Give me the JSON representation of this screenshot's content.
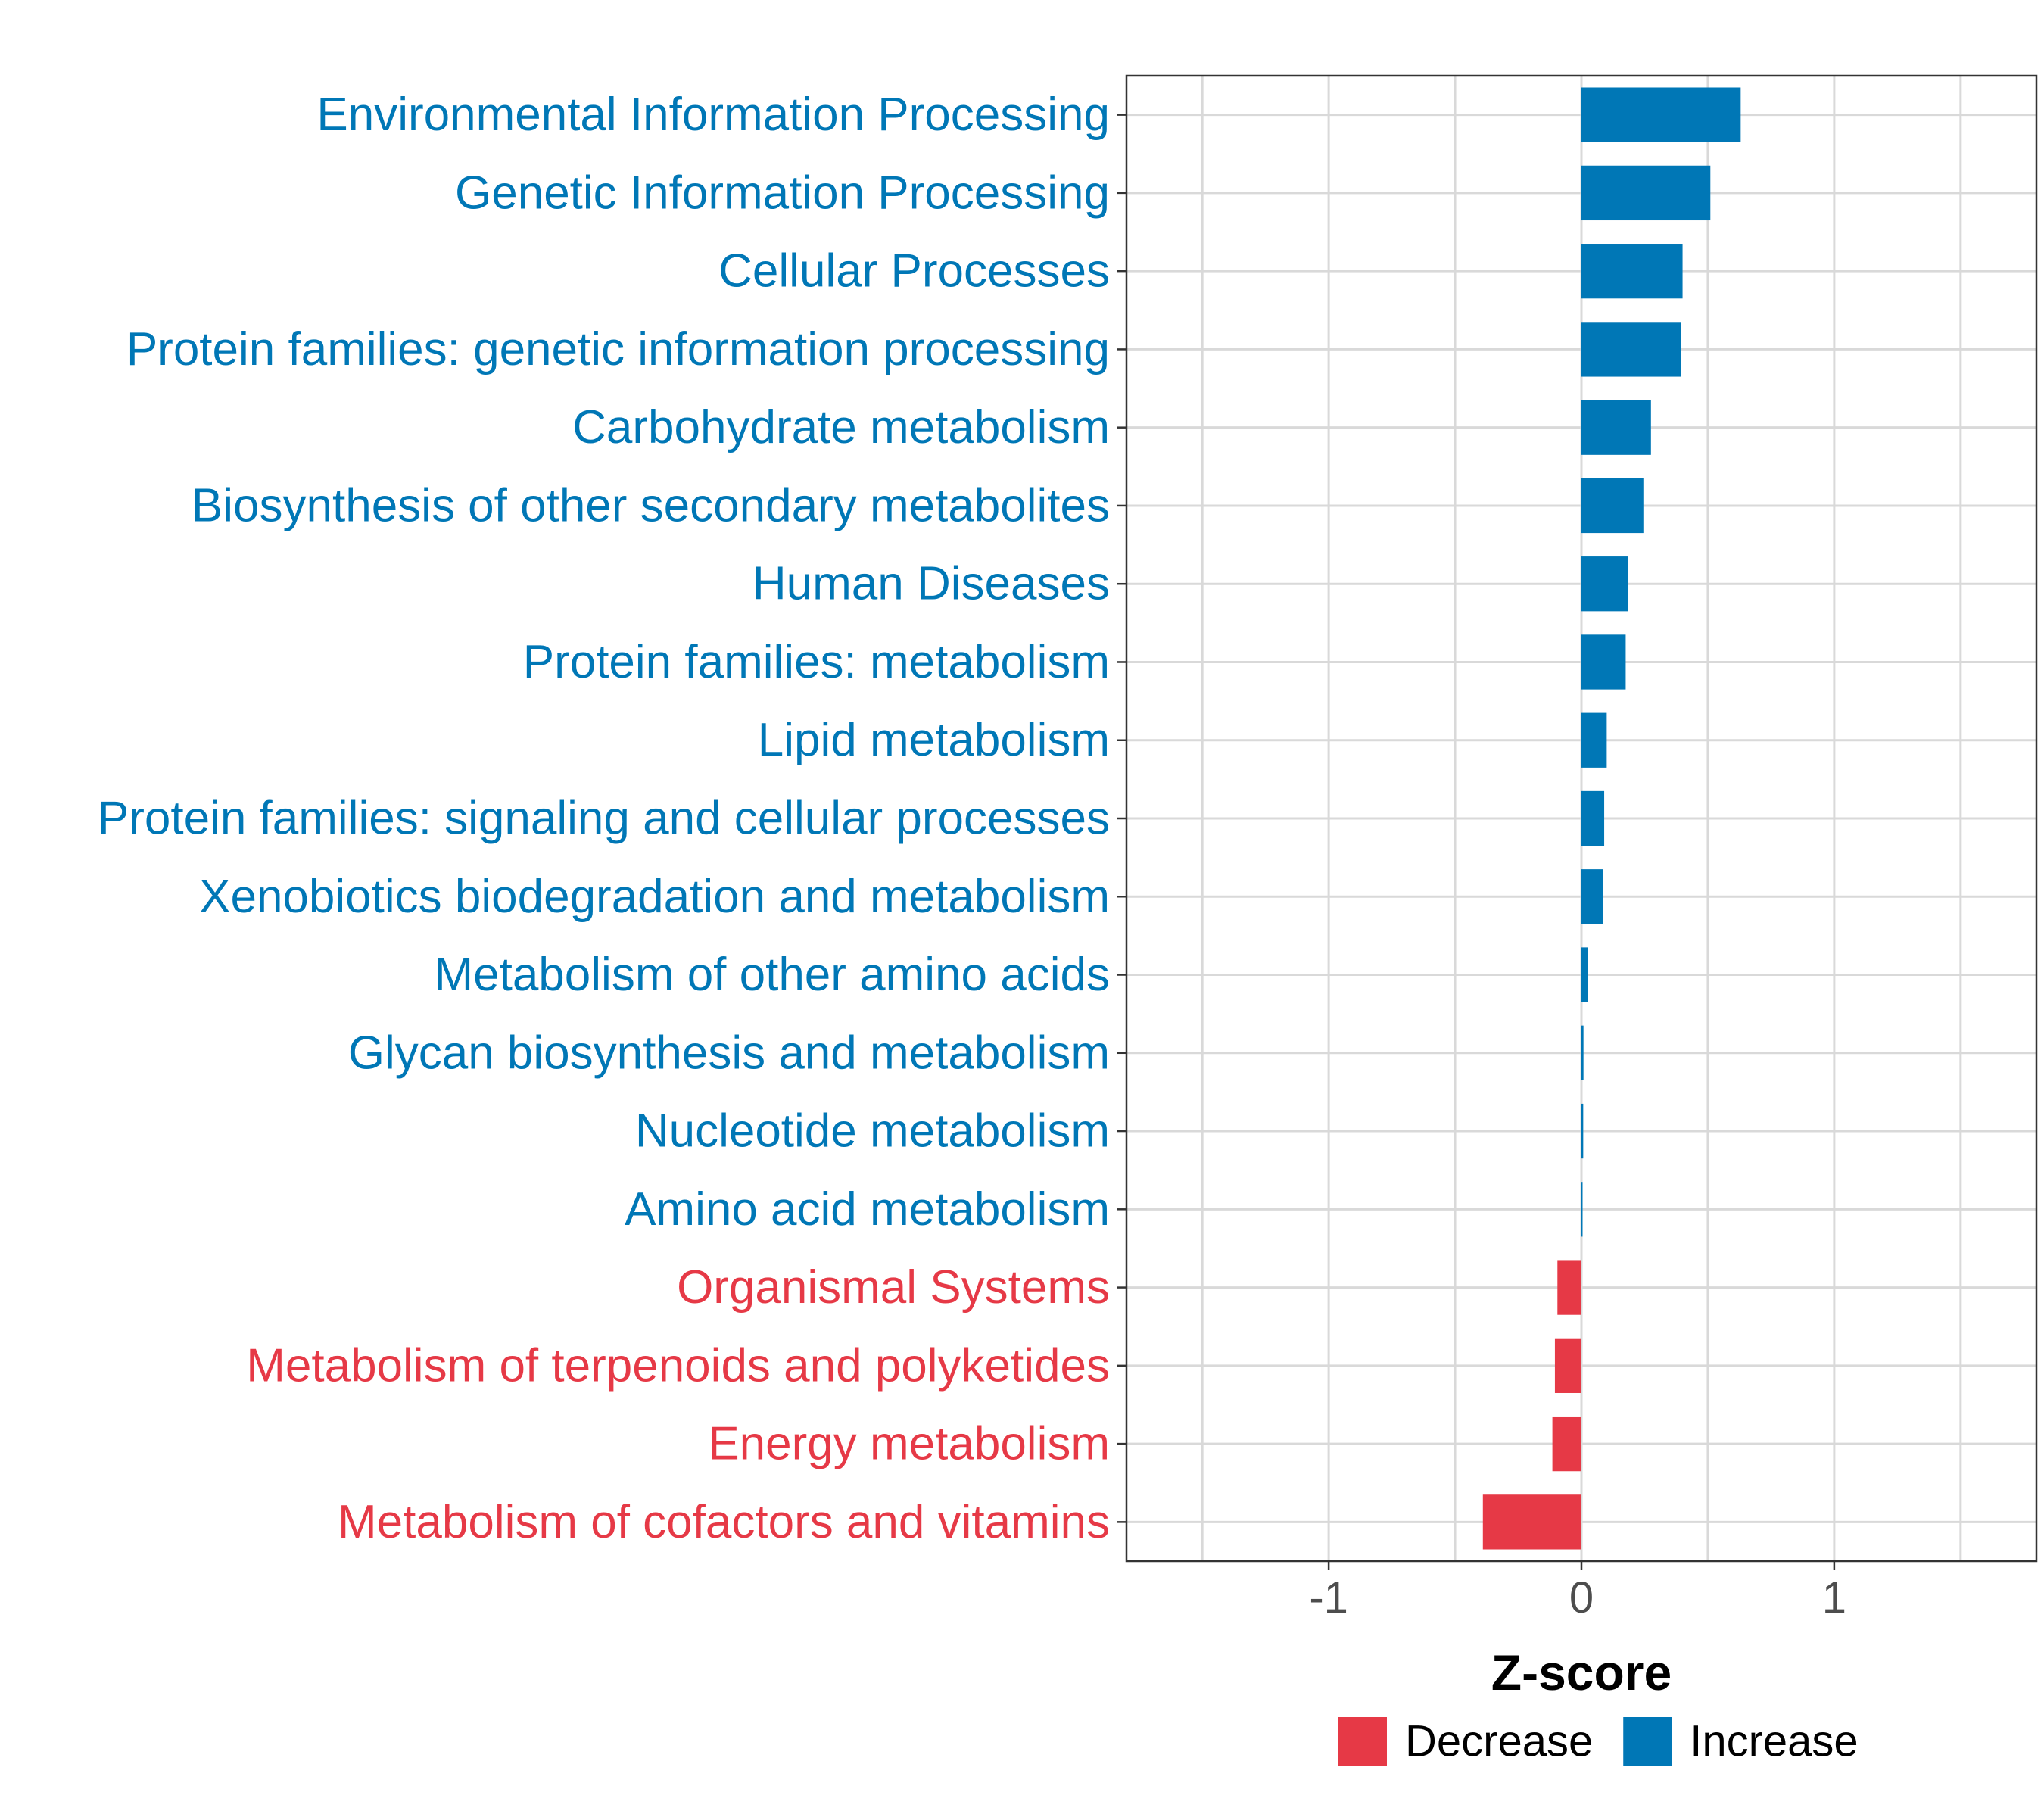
{
  "chart_data": {
    "type": "bar",
    "orientation": "horizontal",
    "xlabel": "Z-score",
    "ylabel": "",
    "xlim": [
      -1.8,
      1.8
    ],
    "xticks": [
      -1,
      0,
      1
    ],
    "xtick_labels": [
      "-1",
      "0",
      "1"
    ],
    "grid": true,
    "legend_position": "bottom",
    "colors": {
      "Decrease": "#E63946",
      "Increase": "#0077B6"
    },
    "legend": [
      {
        "name": "Decrease",
        "color": "#E63946"
      },
      {
        "name": "Increase",
        "color": "#0077B6"
      }
    ],
    "bars": [
      {
        "category": "Environmental Information Processing",
        "value": 0.63,
        "direction": "Increase"
      },
      {
        "category": "Genetic Information Processing",
        "value": 0.51,
        "direction": "Increase"
      },
      {
        "category": "Cellular Processes",
        "value": 0.4,
        "direction": "Increase"
      },
      {
        "category": "Protein families: genetic information processing",
        "value": 0.395,
        "direction": "Increase"
      },
      {
        "category": "Carbohydrate metabolism",
        "value": 0.275,
        "direction": "Increase"
      },
      {
        "category": "Biosynthesis of other secondary metabolites",
        "value": 0.245,
        "direction": "Increase"
      },
      {
        "category": "Human Diseases",
        "value": 0.185,
        "direction": "Increase"
      },
      {
        "category": "Protein families: metabolism",
        "value": 0.175,
        "direction": "Increase"
      },
      {
        "category": "Lipid metabolism",
        "value": 0.1,
        "direction": "Increase"
      },
      {
        "category": "Protein families: signaling and cellular processes",
        "value": 0.09,
        "direction": "Increase"
      },
      {
        "category": "Xenobiotics biodegradation and metabolism",
        "value": 0.085,
        "direction": "Increase"
      },
      {
        "category": "Metabolism of other amino acids",
        "value": 0.025,
        "direction": "Increase"
      },
      {
        "category": "Glycan biosynthesis and metabolism",
        "value": 0.008,
        "direction": "Increase"
      },
      {
        "category": "Nucleotide metabolism",
        "value": 0.007,
        "direction": "Increase"
      },
      {
        "category": "Amino acid metabolism",
        "value": 0.004,
        "direction": "Increase"
      },
      {
        "category": "Organismal Systems",
        "value": -0.095,
        "direction": "Decrease"
      },
      {
        "category": "Metabolism of terpenoids and polyketides",
        "value": -0.105,
        "direction": "Decrease"
      },
      {
        "category": "Energy metabolism",
        "value": -0.115,
        "direction": "Decrease"
      },
      {
        "category": "Metabolism of cofactors and vitamins",
        "value": -0.39,
        "direction": "Decrease"
      }
    ]
  }
}
